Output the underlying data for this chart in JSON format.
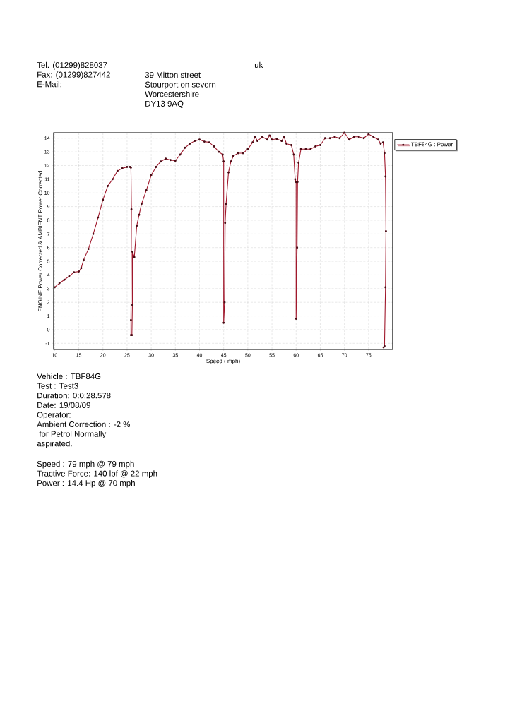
{
  "chart_data": {
    "type": "line",
    "xlabel": "Speed ( mph)",
    "ylabel": "ENGINE Power Corrected & AMBIENT Power Corrected",
    "xlim": [
      9.8,
      80
    ],
    "ylim": [
      -1.45,
      14.4
    ],
    "xticks": [
      10,
      15,
      20,
      25,
      30,
      35,
      40,
      45,
      50,
      55,
      60,
      65,
      70,
      75
    ],
    "yticks": [
      -1,
      0,
      1,
      2,
      3,
      4,
      5,
      6,
      7,
      8,
      9,
      10,
      11,
      12,
      13,
      14
    ],
    "grid": true,
    "legend": "top right",
    "marker": "circle",
    "line_style": "solid",
    "series": [
      {
        "name": "TBF84G : Power",
        "color": "#a0182c",
        "x": [
          10,
          11,
          12,
          13,
          14,
          15,
          15.5,
          16,
          17,
          18,
          19,
          20,
          21,
          22,
          23,
          24,
          25,
          25.6,
          25.8,
          25.9,
          25.8,
          25.8,
          26,
          26.1,
          26.1,
          26.5,
          27,
          27.5,
          28,
          29,
          30,
          31,
          32,
          33,
          34,
          35,
          36,
          37,
          38,
          39,
          40,
          41,
          42,
          43,
          44,
          44.8,
          45,
          45,
          45.2,
          45.3,
          45.5,
          46,
          46.5,
          47,
          48,
          49,
          50,
          51,
          51.5,
          52,
          53,
          54,
          54.5,
          55,
          56,
          57,
          57.5,
          58,
          59,
          59.5,
          59.8,
          60,
          60,
          60.2,
          60.3,
          60.5,
          61,
          62,
          63,
          64,
          65,
          66,
          67,
          68,
          69,
          70,
          71,
          72,
          73,
          74,
          75,
          76,
          77,
          77.5,
          78,
          78.3,
          78.5,
          78.6,
          78.5,
          78.3,
          78.1
        ],
        "values": [
          3.1,
          3.4,
          3.65,
          3.9,
          4.2,
          4.25,
          4.5,
          5.1,
          5.9,
          7.0,
          8.2,
          9.5,
          10.5,
          11.0,
          11.6,
          11.8,
          11.9,
          11.9,
          11.85,
          8.8,
          0.7,
          -0.4,
          -0.4,
          1.8,
          5.7,
          5.3,
          7.6,
          8.4,
          9.2,
          10.2,
          11.3,
          11.9,
          12.3,
          12.5,
          12.4,
          12.35,
          12.8,
          13.3,
          13.6,
          13.8,
          13.9,
          13.75,
          13.7,
          13.4,
          13.0,
          12.8,
          12.3,
          0.5,
          2.0,
          7.8,
          9.2,
          11.5,
          12.3,
          12.7,
          12.9,
          12.9,
          13.2,
          13.7,
          14.1,
          13.8,
          14.1,
          13.9,
          14.2,
          13.9,
          13.95,
          13.8,
          14.1,
          13.6,
          13.5,
          12.8,
          11.0,
          10.8,
          0.8,
          6.0,
          10.8,
          12.2,
          13.2,
          13.2,
          13.2,
          13.4,
          13.5,
          14.0,
          14.0,
          14.1,
          14.0,
          14.4,
          13.9,
          14.1,
          14.1,
          14.0,
          14.3,
          14.1,
          13.9,
          13.6,
          13.7,
          12.9,
          11.2,
          7.2,
          3.1,
          -1.2,
          -1.3
        ]
      }
    ],
    "annotations": [
      "Tel: (01299)828037",
      "Fax: (01299)827442",
      "E-Mail:",
      "39 Mitton street",
      "Stourport on severn",
      "Worcestershire",
      "DY13 9AQ",
      "uk",
      "Vehicle : TBF84G",
      "Test    : Test3",
      "Duration: 0:0:28.578",
      "Date: 19/08/09",
      "Operator:",
      "Ambient Correction : -2 %",
      " for Petrol Normally",
      "aspirated.",
      "Speed : 79 mph @ 79 mph",
      "Tractive Force: 140 lbf @ 22 mph",
      "Power : 14.4 Hp @ 70 mph"
    ]
  }
}
